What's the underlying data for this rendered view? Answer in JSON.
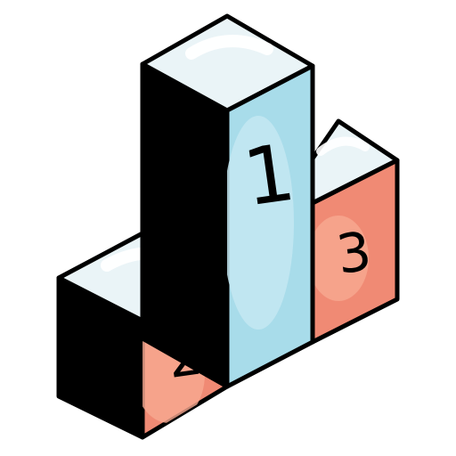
{
  "podium": {
    "first_place_label": "1",
    "second_place_label": "2",
    "third_place_label": "3"
  },
  "colors": {
    "outline": "#000000",
    "top_face": "#eaf4f7",
    "top_highlight": "#ffffff",
    "first_front": "#a8dcea",
    "first_highlight": "#c4e8f2",
    "side_dark": "#000000",
    "place_front": "#f08a74",
    "place_highlight": "#f7a991"
  },
  "icon": "podium-icon"
}
